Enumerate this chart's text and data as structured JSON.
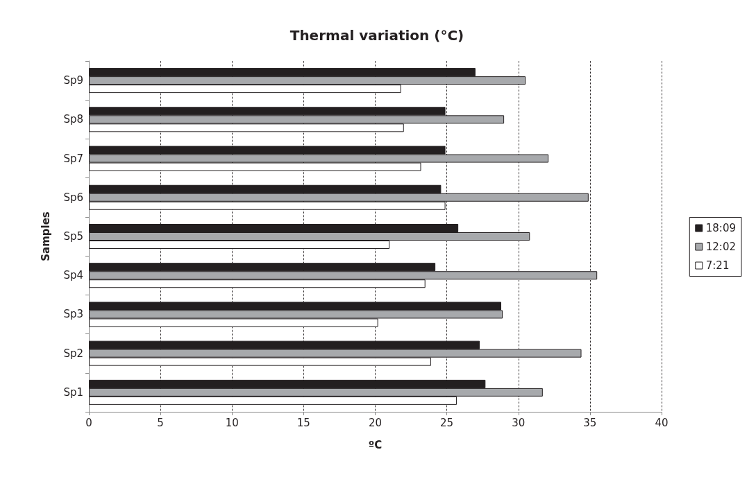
{
  "chart_data": {
    "type": "bar",
    "orientation": "horizontal",
    "title": "Thermal variation (°C)",
    "xlabel": "ºC",
    "ylabel": "Samples",
    "categories": [
      "Sp9",
      "Sp8",
      "Sp7",
      "Sp6",
      "Sp5",
      "Sp4",
      "Sp3",
      "Sp2",
      "Sp1"
    ],
    "series": [
      {
        "name": "18:09",
        "color": "#231f20",
        "values": [
          27.0,
          24.9,
          24.9,
          24.6,
          25.8,
          24.2,
          28.8,
          27.3,
          27.7
        ]
      },
      {
        "name": "12:02",
        "color": "#a7a9ac",
        "values": [
          30.5,
          29.0,
          32.1,
          34.9,
          30.8,
          35.5,
          28.9,
          34.4,
          31.7
        ]
      },
      {
        "name": "7:21",
        "color": "#ffffff",
        "values": [
          21.8,
          22.0,
          23.2,
          24.9,
          21.0,
          23.5,
          20.2,
          23.9,
          25.7
        ]
      }
    ],
    "xlim": [
      0,
      40
    ],
    "xticks": [
      0,
      5,
      10,
      15,
      20,
      25,
      30,
      35,
      40
    ],
    "grid": "x",
    "legend": "right"
  }
}
